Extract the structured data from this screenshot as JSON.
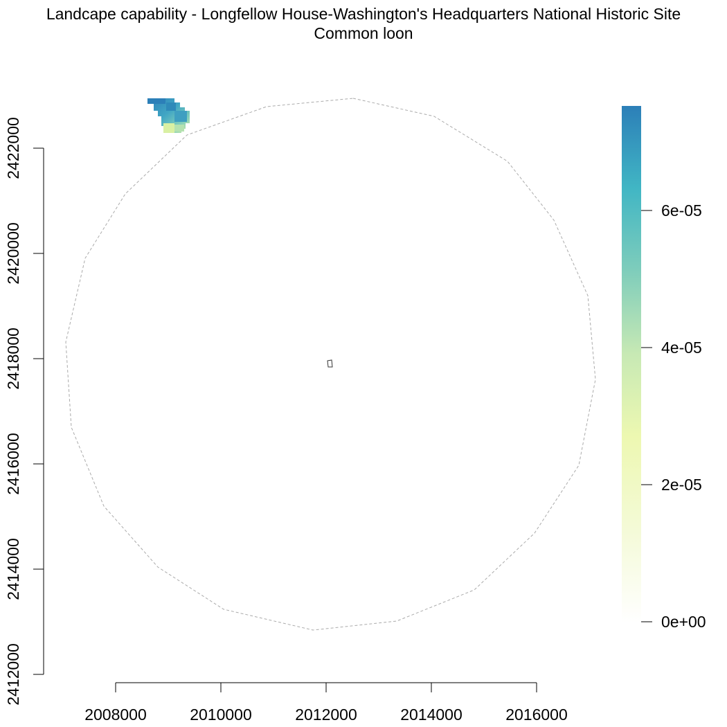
{
  "title": {
    "line1": "Landcape capability - Longfellow House-Washington's Headquarters National Historic Site",
    "line2": "Common loon"
  },
  "chart_data": {
    "type": "heatmap",
    "x_ticks": [
      "2008000",
      "2010000",
      "2012000",
      "2014000",
      "2016000"
    ],
    "y_ticks": [
      "2412000",
      "2414000",
      "2416000",
      "2418000",
      "2420000",
      "2422000"
    ],
    "xlim": [
      2008000,
      2016000
    ],
    "ylim": [
      2412000,
      2422000
    ],
    "legend": {
      "range": [
        0,
        7.5e-05
      ],
      "ticks": [
        "0e+00",
        "2e-05",
        "4e-05",
        "6e-05"
      ],
      "tick_values": [
        0,
        2e-05,
        4e-05,
        6e-05
      ],
      "colors": [
        "#ffffff",
        "#f7fbdc",
        "#edf8b1",
        "#c7e9b4",
        "#7fcdbb",
        "#41b6c4",
        "#2c7fb8"
      ]
    },
    "buffer": {
      "style": "dashed",
      "color": "#aaaaaa",
      "center": [
        2012050,
        2417900
      ]
    },
    "site": {
      "center": [
        2012050,
        2417900
      ]
    },
    "raster_patch": {
      "location": "top-left",
      "value_range": [
        2e-05,
        7.5e-05
      ]
    }
  }
}
